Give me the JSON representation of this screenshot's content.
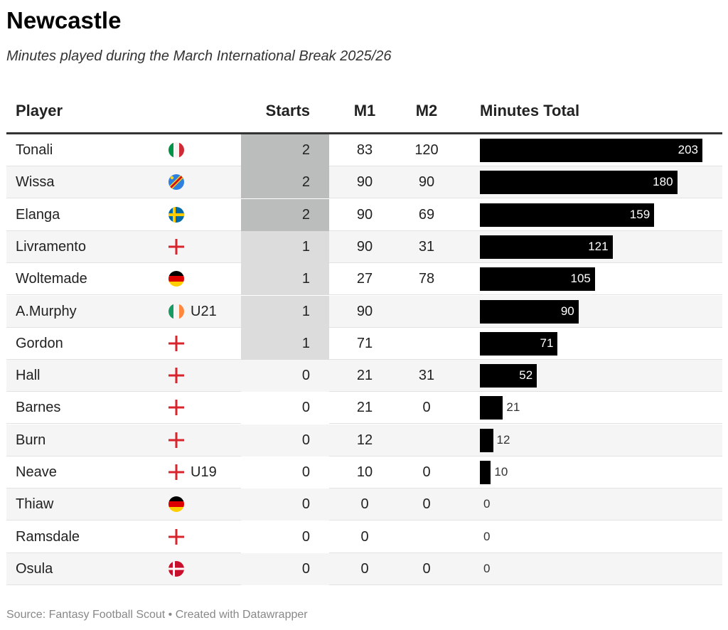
{
  "header": {
    "title": "Newcastle",
    "subtitle": "Minutes played during the March International Break 2025/26"
  },
  "table": {
    "columns": {
      "player": "Player",
      "starts": "Starts",
      "m1": "M1",
      "m2": "M2",
      "total": "Minutes Total"
    },
    "rows": [
      {
        "player": "Tonali",
        "starts": 2,
        "m1": 83,
        "m2": 120,
        "total": 203
      },
      {
        "player": "Wissa",
        "starts": 2,
        "m1": 90,
        "m2": 90,
        "total": 180
      },
      {
        "player": "Elanga",
        "starts": 2,
        "m1": 90,
        "m2": 69,
        "total": 159
      },
      {
        "player": "Livramento",
        "starts": 1,
        "m1": 90,
        "m2": 31,
        "total": 121
      },
      {
        "player": "Woltemade",
        "starts": 1,
        "m1": 27,
        "m2": 78,
        "total": 105
      },
      {
        "player": "A.Murphy",
        "badge": "U21",
        "starts": 1,
        "m1": 90,
        "m2": null,
        "total": 90
      },
      {
        "player": "Gordon",
        "starts": 1,
        "m1": 71,
        "m2": null,
        "total": 71
      },
      {
        "player": "Hall",
        "starts": 0,
        "m1": 21,
        "m2": 31,
        "total": 52
      },
      {
        "player": "Barnes",
        "starts": 0,
        "m1": 21,
        "m2": 0,
        "total": 21
      },
      {
        "player": "Burn",
        "starts": 0,
        "m1": 12,
        "m2": null,
        "total": 12
      },
      {
        "player": "Neave",
        "badge": "U19",
        "starts": 0,
        "m1": 10,
        "m2": 0,
        "total": 10
      },
      {
        "player": "Thiaw",
        "starts": 0,
        "m1": 0,
        "m2": 0,
        "total": 0
      },
      {
        "player": "Ramsdale",
        "starts": 0,
        "m1": 0,
        "m2": null,
        "total": 0
      },
      {
        "player": "Osula",
        "starts": 0,
        "m1": 0,
        "m2": 0,
        "total": 0
      }
    ]
  },
  "footer": {
    "source": "Source: Fantasy Football Scout • Created with Datawrapper"
  }
}
